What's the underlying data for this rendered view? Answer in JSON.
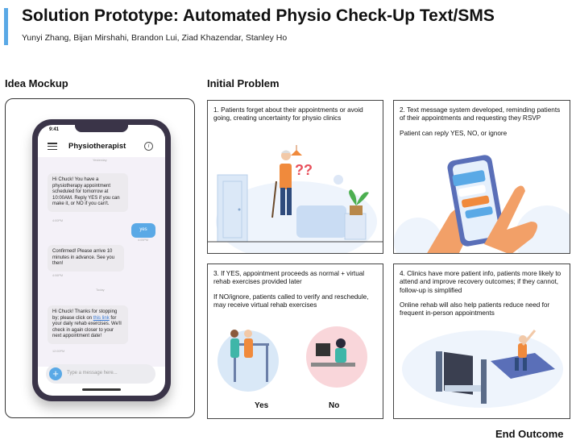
{
  "header": {
    "title": "Solution Prototype: Automated Physio Check-Up Text/SMS",
    "authors": "Yunyi Zhang, Bijan Mirshahi, Brandon Lui, Ziad Khazendar, Stanley Ho"
  },
  "sections": {
    "idea_mockup": "Idea Mockup",
    "initial_problem": "Initial Problem",
    "end_outcome": "End Outcome"
  },
  "phone": {
    "status_time": "9:41",
    "app_title": "Physiotherapist",
    "day_label_1": "Yesterday",
    "day_label_2": "Today",
    "messages": [
      {
        "text": "Hi Chuck! You have a physiotherapy appointment scheduled for tomorrow at 10:00AM. Reply YES if you can make it, or NO if you can't.",
        "time": "4:00PM"
      },
      {
        "text": "yes",
        "time": "4:05PM"
      },
      {
        "text": "Confirmed! Please arrive 10 minutes in advance. See you then!",
        "time": "4:06PM"
      },
      {
        "text_before": "Hi Chuck! Thanks for stopping by; please click on ",
        "link": "this link",
        "text_after": " for your daily rehab exercises. We'll check in again closer to your next appointment date!",
        "time": "12:00PM"
      }
    ],
    "input_placeholder": "Type a message here..."
  },
  "panels": [
    {
      "text": [
        "1. Patients forget about their appointments or avoid going, creating uncertainty for physio clinics"
      ]
    },
    {
      "text": [
        "2. Text message system developed, reminding patients of their appointments and requesting they RSVP",
        "Patient can reply YES, NO, or ignore"
      ]
    },
    {
      "text": [
        "3. If YES, appointment proceeds as normal + virtual rehab exercises provided later",
        "If NO/ignore, patients called to verify and reschedule, may receive virtual rehab exercises"
      ],
      "yes_label": "Yes",
      "no_label": "No"
    },
    {
      "text": [
        "4. Clinics have more patient info, patients more likely to attend and improve recovery outcomes; if they cannot, follow-up is simplified",
        "Online rehab will also help patients reduce need for frequent in-person appointments"
      ]
    }
  ],
  "colors": {
    "accent": "#5aa9e6",
    "phone_frame": "#3a3448",
    "illustration_blue": "#cfe0f5",
    "skin": "#f2a068",
    "question_marks": "#e8505b"
  }
}
